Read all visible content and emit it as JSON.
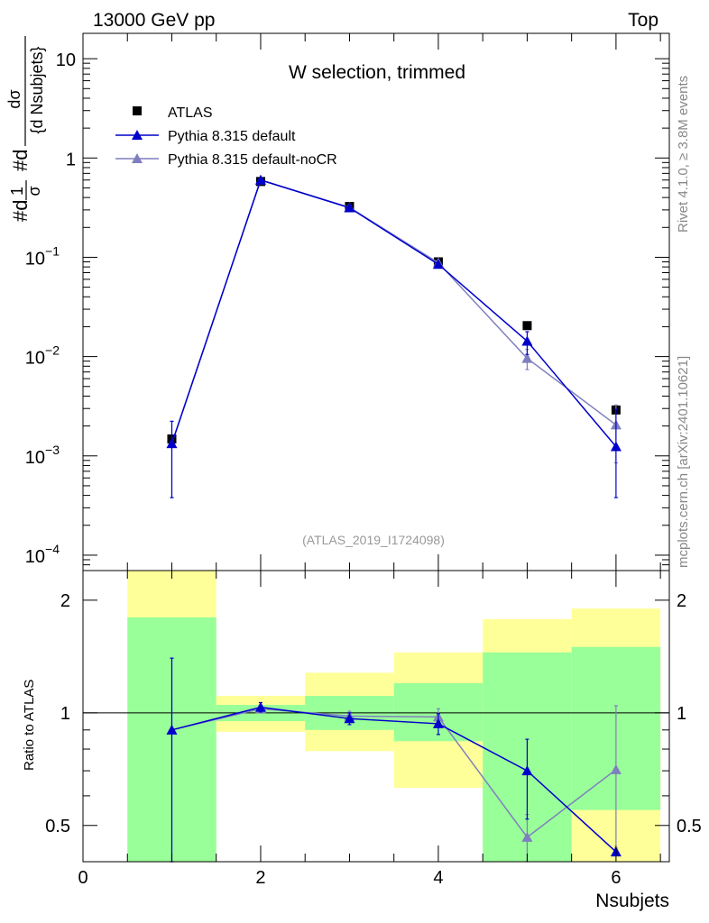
{
  "header": {
    "left": "13000 GeV pp",
    "right": "Top"
  },
  "side_labels": {
    "upper": "Rivet 4.1.0, ≥ 3.8M events",
    "lower": "mcplots.cern.ch [arXiv:2401.10621]"
  },
  "analysis_id": "(ATLAS_2019_I1724098)",
  "colors": {
    "data": "#000000",
    "pythia_default": "#0000cc",
    "pythia_nocr": "#7f7fbf",
    "band_inner": "#99ff99",
    "band_outer": "#ffff99"
  },
  "chart_data": [
    {
      "type": "scatter",
      "title": "W selection, trimmed",
      "ylabel": "#d1/σ #dσ/{d Nsubjets}",
      "ylabel_parts": {
        "p1": "#d",
        "p1_num": "1",
        "p1_den": "σ",
        "p2": "#d",
        "p2_num": "dσ",
        "p2_den": "{d Nsubjets}"
      },
      "yscale": "log",
      "ylim": [
        7e-05,
        18
      ],
      "xlim": [
        0,
        6.6
      ],
      "y_ticks": [
        {
          "value": 10,
          "mant": "10",
          "exp": ""
        },
        {
          "value": 1,
          "mant": "1",
          "exp": ""
        },
        {
          "value": 0.1,
          "mant": "10",
          "exp": "−1"
        },
        {
          "value": 0.01,
          "mant": "10",
          "exp": "−2"
        },
        {
          "value": 0.001,
          "mant": "10",
          "exp": "−3"
        },
        {
          "value": 0.0001,
          "mant": "10",
          "exp": "−4"
        }
      ],
      "legend": {
        "position": "top-left",
        "entries": [
          "ATLAS",
          "Pythia 8.315 default",
          "Pythia 8.315 default-noCR"
        ]
      },
      "series": [
        {
          "name": "ATLAS",
          "marker": "square",
          "x": [
            1,
            2,
            3,
            4,
            5,
            6
          ],
          "y": [
            0.00148,
            0.58,
            0.325,
            0.09,
            0.0205,
            0.0029
          ]
        },
        {
          "name": "Pythia 8.315 default",
          "marker": "triangle",
          "x": [
            1,
            2,
            3,
            4,
            5,
            6
          ],
          "y": [
            0.00133,
            0.6,
            0.315,
            0.085,
            0.0143,
            0.00124
          ],
          "err_low": [
            0.00095,
            0.03,
            0.01,
            0.004,
            0.0038,
            0.00086
          ],
          "err_high": [
            0.0009,
            0.03,
            0.01,
            0.004,
            0.0035,
            0.0017
          ]
        },
        {
          "name": "Pythia 8.315 default-noCR",
          "marker": "triangle",
          "x": [
            1,
            2,
            3,
            4,
            5,
            6
          ],
          "y": [
            0.00133,
            0.6,
            0.318,
            0.088,
            0.0096,
            0.00205
          ],
          "err_low": [
            0.00095,
            0.03,
            0.01,
            0.004,
            0.0022,
            0.0012
          ],
          "err_high": [
            0.0009,
            0.03,
            0.01,
            0.004,
            0.0022,
            0.0012
          ]
        }
      ]
    },
    {
      "type": "scatter",
      "title": "",
      "xlabel": "Nsubjets",
      "ylabel": "Ratio to ATLAS",
      "yscale": "log",
      "ylim": [
        0.4,
        2.4
      ],
      "xlim": [
        0,
        6.6
      ],
      "x_ticks": [
        0,
        2,
        4,
        6
      ],
      "y_ticks": [
        0.5,
        1,
        2
      ],
      "bands": [
        {
          "xlo": 0.5,
          "xhi": 1.5,
          "inner": [
            0.4,
            1.8
          ],
          "outer": [
            0.4,
            2.4
          ]
        },
        {
          "xlo": 1.5,
          "xhi": 2.5,
          "inner": [
            0.95,
            1.05
          ],
          "outer": [
            0.89,
            1.11
          ]
        },
        {
          "xlo": 2.5,
          "xhi": 3.5,
          "inner": [
            0.9,
            1.11
          ],
          "outer": [
            0.79,
            1.28
          ]
        },
        {
          "xlo": 3.5,
          "xhi": 4.5,
          "inner": [
            0.84,
            1.2
          ],
          "outer": [
            0.63,
            1.45
          ]
        },
        {
          "xlo": 4.5,
          "xhi": 5.5,
          "inner": [
            0.4,
            1.45
          ],
          "outer": [
            0.4,
            1.78
          ]
        },
        {
          "xlo": 5.5,
          "xhi": 6.5,
          "inner": [
            0.55,
            1.5
          ],
          "outer": [
            0.4,
            1.9
          ]
        }
      ],
      "series": [
        {
          "name": "Pythia 8.315 default",
          "x": [
            1,
            2,
            3,
            4,
            5,
            6
          ],
          "y": [
            0.9,
            1.035,
            0.965,
            0.935,
            0.7,
            0.425
          ],
          "err_low": [
            0.5,
            0.03,
            0.035,
            0.06,
            0.18,
            0.0
          ],
          "err_high": [
            0.5,
            0.03,
            0.035,
            0.06,
            0.15,
            0.0
          ]
        },
        {
          "name": "Pythia 8.315 default-noCR",
          "x": [
            1,
            2,
            3,
            4,
            5,
            6
          ],
          "y": [
            0.9,
            1.025,
            0.98,
            0.975,
            0.465,
            0.705
          ],
          "err_low": [
            0.5,
            0.02,
            0.03,
            0.05,
            0.07,
            0.27
          ],
          "err_high": [
            0.5,
            0.02,
            0.03,
            0.05,
            0.07,
            0.34
          ]
        }
      ]
    }
  ]
}
